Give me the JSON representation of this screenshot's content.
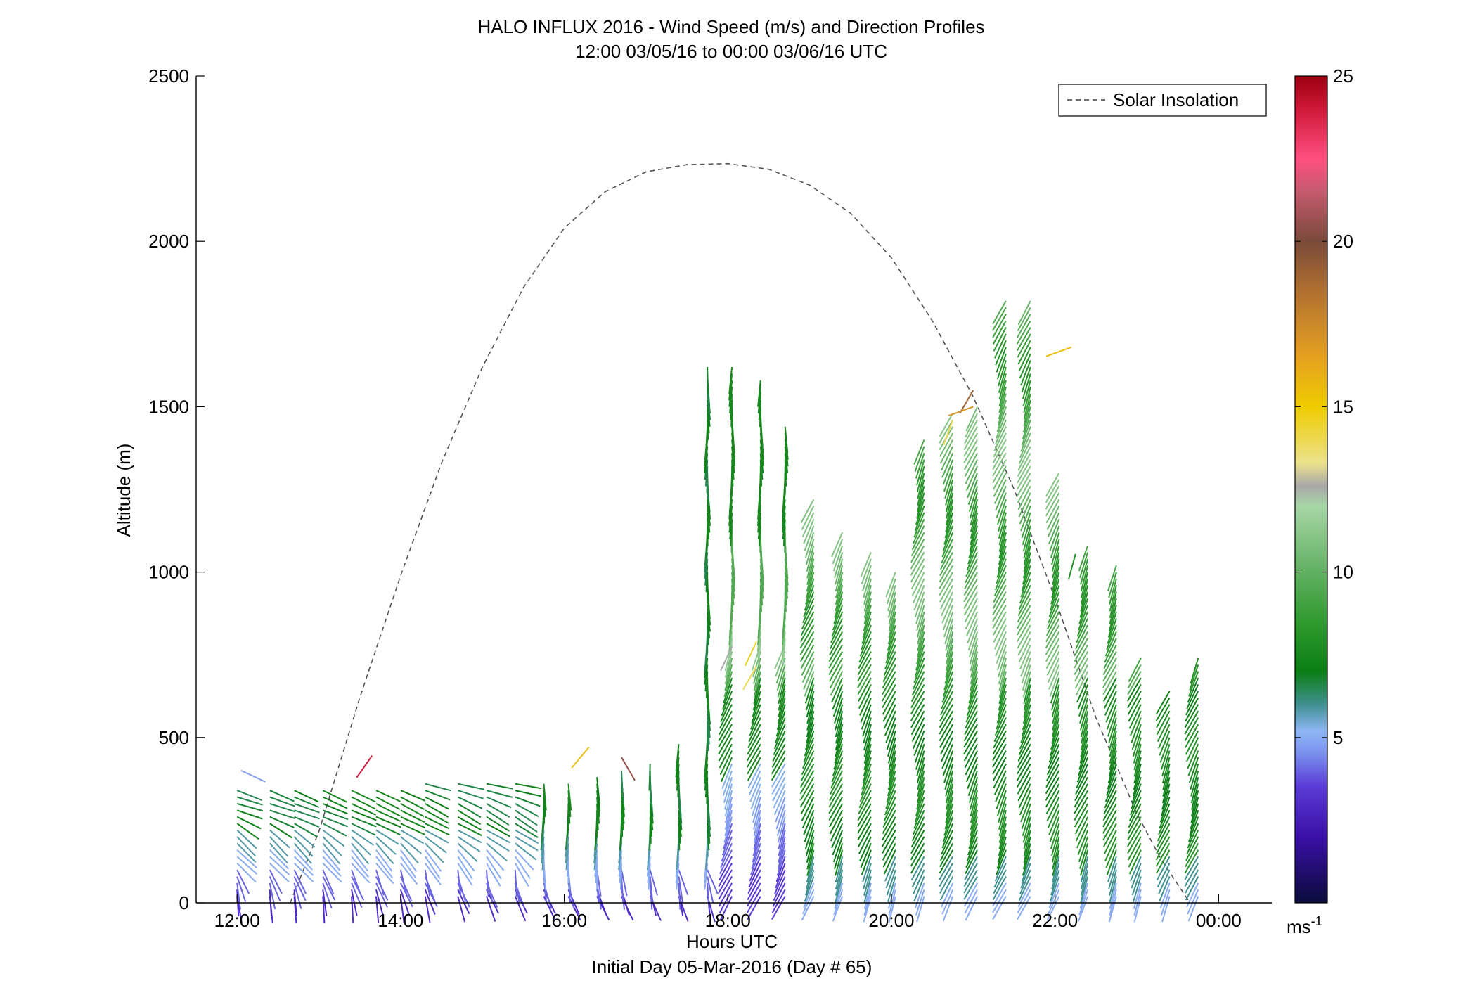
{
  "chart_data": {
    "type": "wind_barb_profile",
    "title": "HALO INFLUX 2016 - Wind Speed (m/s) and Direction Profiles",
    "subtitle": "12:00 03/05/16 to 00:00 03/06/16  UTC",
    "xlabel": "Hours UTC",
    "xlabel2": "Initial Day 05-Mar-2016 (Day # 65)",
    "ylabel": "Altitude (m)",
    "xlim": [
      11.5,
      24.65
    ],
    "ylim": [
      0,
      2500
    ],
    "xticks": [
      {
        "value": 12,
        "label": "12:00"
      },
      {
        "value": 14,
        "label": "14:00"
      },
      {
        "value": 16,
        "label": "16:00"
      },
      {
        "value": 18,
        "label": "18:00"
      },
      {
        "value": 20,
        "label": "20:00"
      },
      {
        "value": 22,
        "label": "22:00"
      },
      {
        "value": 24,
        "label": "00:00"
      }
    ],
    "yticks": [
      {
        "value": 0,
        "label": "0"
      },
      {
        "value": 500,
        "label": "500"
      },
      {
        "value": 1000,
        "label": "1000"
      },
      {
        "value": 1500,
        "label": "1500"
      },
      {
        "value": 2000,
        "label": "2000"
      },
      {
        "value": 2500,
        "label": "2500"
      }
    ],
    "legend": {
      "label": "Solar Insolation",
      "position": "top-right",
      "line_style": "dashed",
      "color": "#555555"
    },
    "solar_insolation": {
      "peak_hour": 18.0,
      "peak_altitude": 2235,
      "rise_hour": 12.65,
      "set_hour": 23.65,
      "points": [
        [
          12.65,
          0
        ],
        [
          13.0,
          215
        ],
        [
          13.5,
          620
        ],
        [
          14.0,
          990
        ],
        [
          14.5,
          1330
        ],
        [
          15.0,
          1620
        ],
        [
          15.5,
          1860
        ],
        [
          16.0,
          2040
        ],
        [
          16.5,
          2150
        ],
        [
          17.0,
          2210
        ],
        [
          17.5,
          2232
        ],
        [
          18.0,
          2235
        ],
        [
          18.5,
          2218
        ],
        [
          19.0,
          2170
        ],
        [
          19.5,
          2085
        ],
        [
          20.0,
          1950
        ],
        [
          20.5,
          1760
        ],
        [
          21.0,
          1530
        ],
        [
          21.5,
          1250
        ],
        [
          22.0,
          920
        ],
        [
          22.5,
          560
        ],
        [
          23.0,
          270
        ],
        [
          23.3,
          130
        ],
        [
          23.65,
          0
        ]
      ]
    },
    "colorbar": {
      "min": 0,
      "max": 25,
      "ticks": [
        {
          "value": 5,
          "label": "5"
        },
        {
          "value": 10,
          "label": "10"
        },
        {
          "value": 15,
          "label": "15"
        },
        {
          "value": 20,
          "label": "20"
        },
        {
          "value": 25,
          "label": "25"
        }
      ],
      "units_label": "ms",
      "units_exponent": "-1",
      "stops": [
        {
          "v": 0,
          "color": "#0b0b3a"
        },
        {
          "v": 2,
          "color": "#3a10a8"
        },
        {
          "v": 3.5,
          "color": "#5a3ad6"
        },
        {
          "v": 4.5,
          "color": "#7a8fee"
        },
        {
          "v": 5.2,
          "color": "#8fb6f4"
        },
        {
          "v": 6,
          "color": "#3f9090"
        },
        {
          "v": 7,
          "color": "#0b7e14"
        },
        {
          "v": 8.5,
          "color": "#2f9a2f"
        },
        {
          "v": 10,
          "color": "#61b061"
        },
        {
          "v": 12,
          "color": "#a7d6a7"
        },
        {
          "v": 12.6,
          "color": "#a8a8a8"
        },
        {
          "v": 13.3,
          "color": "#ece28c"
        },
        {
          "v": 15,
          "color": "#eecc00"
        },
        {
          "v": 16.5,
          "color": "#e6a020"
        },
        {
          "v": 18.5,
          "color": "#b07030"
        },
        {
          "v": 20,
          "color": "#7a4a3a"
        },
        {
          "v": 21.5,
          "color": "#c55a6e"
        },
        {
          "v": 22.5,
          "color": "#ff4f80"
        },
        {
          "v": 24,
          "color": "#d01838"
        },
        {
          "v": 25,
          "color": "#9a0010"
        }
      ]
    },
    "profile_times": [
      12.0,
      12.4,
      12.7,
      13.05,
      13.4,
      13.7,
      14.0,
      14.3,
      14.7,
      15.05,
      15.4,
      15.75,
      16.05,
      16.4,
      16.7,
      17.05,
      17.4,
      17.75,
      18.05,
      18.4,
      18.7,
      19.05,
      19.4,
      19.75,
      20.05,
      20.4,
      20.75,
      21.05,
      21.4,
      21.7,
      22.05,
      22.4,
      22.75,
      23.05,
      23.4,
      23.75
    ],
    "profile_tops": [
      350,
      350,
      350,
      350,
      350,
      350,
      350,
      360,
      365,
      365,
      365,
      370,
      375,
      390,
      410,
      430,
      480,
      1620,
      1620,
      1580,
      1450,
      1220,
      1120,
      1060,
      1010,
      1400,
      1480,
      1500,
      1830,
      1830,
      1300,
      1080,
      1020,
      740,
      650,
      740
    ],
    "special_barbs": [
      {
        "t": 12.05,
        "z": 400,
        "speed": 4.8,
        "dir": 25
      },
      {
        "t": 13.65,
        "z": 445,
        "speed": 24.0,
        "dir": 125
      },
      {
        "t": 16.3,
        "z": 470,
        "speed": 15.5,
        "dir": 130
      },
      {
        "t": 16.7,
        "z": 440,
        "speed": 20.5,
        "dir": 60
      },
      {
        "t": 20.75,
        "z": 1460,
        "speed": 14.0,
        "dir": 110
      },
      {
        "t": 21.0,
        "z": 1550,
        "speed": 19.0,
        "dir": 120
      },
      {
        "t": 21.0,
        "z": 1500,
        "speed": 17.0,
        "dir": 160
      },
      {
        "t": 22.2,
        "z": 1680,
        "speed": 15.5,
        "dir": 160
      },
      {
        "t": 22.25,
        "z": 1055,
        "speed": 8.0,
        "dir": 105
      },
      {
        "t": 18.35,
        "z": 790,
        "speed": 14.5,
        "dir": 115
      },
      {
        "t": 18.35,
        "z": 715,
        "speed": 14.0,
        "dir": 120
      },
      {
        "t": 18.05,
        "z": 775,
        "speed": 12.6,
        "dir": 115
      }
    ]
  }
}
